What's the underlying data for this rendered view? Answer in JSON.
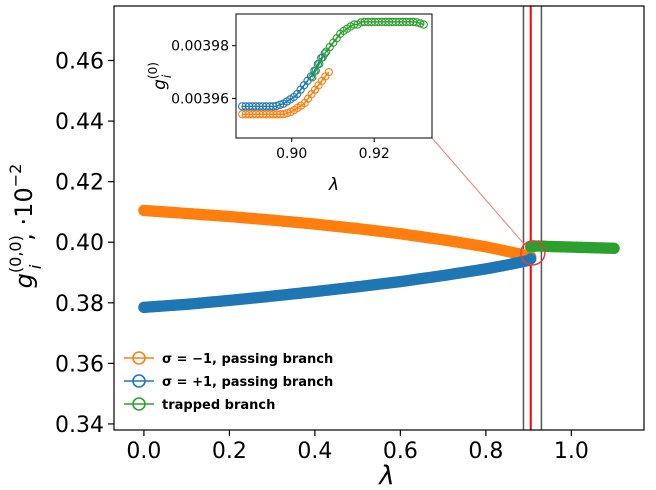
{
  "chart_data": [
    {
      "type": "scatter",
      "role": "main",
      "xlabel": "λ",
      "ylabel_main": "g",
      "ylabel_sub": "i",
      "ylabel_sup": "(0,0)",
      "ylabel_suffix": ", ·10",
      "ylabel_exp": "−2",
      "xlim": [
        -0.07,
        1.17
      ],
      "ylim": [
        0.338,
        0.478
      ],
      "xticks": [
        0.0,
        0.2,
        0.4,
        0.6,
        0.8,
        1.0
      ],
      "xtick_labels": [
        "0.0",
        "0.2",
        "0.4",
        "0.6",
        "0.8",
        "1.0"
      ],
      "yticks": [
        0.34,
        0.36,
        0.38,
        0.4,
        0.42,
        0.44,
        0.46
      ],
      "ytick_labels": [
        "0.34",
        "0.36",
        "0.38",
        "0.40",
        "0.42",
        "0.44",
        "0.46"
      ],
      "vertical_lines": [
        {
          "x": 0.888,
          "color": "#555555"
        },
        {
          "x": 0.905,
          "color": "#ff0000"
        },
        {
          "x": 0.93,
          "color": "#555555"
        }
      ],
      "zoom_circle": {
        "x": 0.91,
        "y": 0.3965
      },
      "legend_position": "lower-left",
      "series": [
        {
          "name": "σ = −1, passing branch",
          "color": "#ff7f0e",
          "x": [
            0.0,
            0.1,
            0.2,
            0.3,
            0.4,
            0.5,
            0.6,
            0.7,
            0.8,
            0.85,
            0.9,
            0.905
          ],
          "y": [
            0.4105,
            0.4095,
            0.4085,
            0.4073,
            0.406,
            0.4045,
            0.4028,
            0.4008,
            0.3985,
            0.397,
            0.3955,
            0.3952
          ]
        },
        {
          "name": "σ = +1, passing branch",
          "color": "#1f77b4",
          "x": [
            0.0,
            0.1,
            0.2,
            0.3,
            0.4,
            0.5,
            0.6,
            0.7,
            0.8,
            0.85,
            0.9,
            0.905
          ],
          "y": [
            0.3785,
            0.3795,
            0.3808,
            0.3822,
            0.3837,
            0.3853,
            0.387,
            0.389,
            0.3912,
            0.3925,
            0.394,
            0.3945
          ]
        },
        {
          "name": "trapped branch",
          "color": "#2ca02c",
          "x": [
            0.905,
            0.92,
            0.95,
            1.0,
            1.05,
            1.1
          ],
          "y": [
            0.3985,
            0.3988,
            0.3986,
            0.3984,
            0.3982,
            0.398
          ]
        }
      ]
    },
    {
      "type": "scatter",
      "role": "inset",
      "xlabel": "λ",
      "ylabel_main": "g",
      "ylabel_sub": "i",
      "ylabel_sup": "(0)",
      "xlim": [
        0.8865,
        0.934
      ],
      "ylim": [
        0.003945,
        0.003992
      ],
      "xticks": [
        0.9,
        0.92
      ],
      "xtick_labels": [
        "0.90",
        "0.92"
      ],
      "yticks": [
        0.00396,
        0.00398
      ],
      "ytick_labels": [
        "0.00396",
        "0.00398"
      ],
      "series": [
        {
          "name": "σ = −1, passing branch",
          "color": "#ff7f0e",
          "x": [
            0.888,
            0.89,
            0.892,
            0.894,
            0.896,
            0.898,
            0.9,
            0.901,
            0.902,
            0.903,
            0.904,
            0.905,
            0.906,
            0.907,
            0.908,
            0.909
          ],
          "y": [
            0.003954,
            0.003954,
            0.003954,
            0.003954,
            0.003954,
            0.003954,
            0.003955,
            0.003956,
            0.003957,
            0.003958,
            0.00396,
            0.003962,
            0.003964,
            0.003966,
            0.003968,
            0.00397
          ]
        },
        {
          "name": "σ = +1, passing branch",
          "color": "#1f77b4",
          "x": [
            0.888,
            0.89,
            0.892,
            0.894,
            0.896,
            0.898,
            0.899,
            0.9,
            0.901,
            0.902,
            0.903,
            0.904,
            0.905,
            0.906,
            0.907,
            0.908
          ],
          "y": [
            0.003957,
            0.003957,
            0.003957,
            0.003957,
            0.003957,
            0.003958,
            0.003959,
            0.00396,
            0.003961,
            0.003963,
            0.003965,
            0.003967,
            0.003969,
            0.003972,
            0.003975,
            0.003977
          ]
        },
        {
          "name": "trapped branch",
          "color": "#2ca02c",
          "x": [
            0.905,
            0.906,
            0.907,
            0.908,
            0.909,
            0.91,
            0.911,
            0.912,
            0.913,
            0.914,
            0.915,
            0.916,
            0.917,
            0.918,
            0.92,
            0.922,
            0.924,
            0.926,
            0.928,
            0.93,
            0.932
          ],
          "y": [
            0.003968,
            0.003971,
            0.003974,
            0.003977,
            0.003979,
            0.003981,
            0.003983,
            0.003985,
            0.003986,
            0.003987,
            0.003988,
            0.003988,
            0.003989,
            0.003989,
            0.003989,
            0.003989,
            0.003989,
            0.003989,
            0.003989,
            0.003989,
            0.003988
          ]
        }
      ]
    }
  ]
}
